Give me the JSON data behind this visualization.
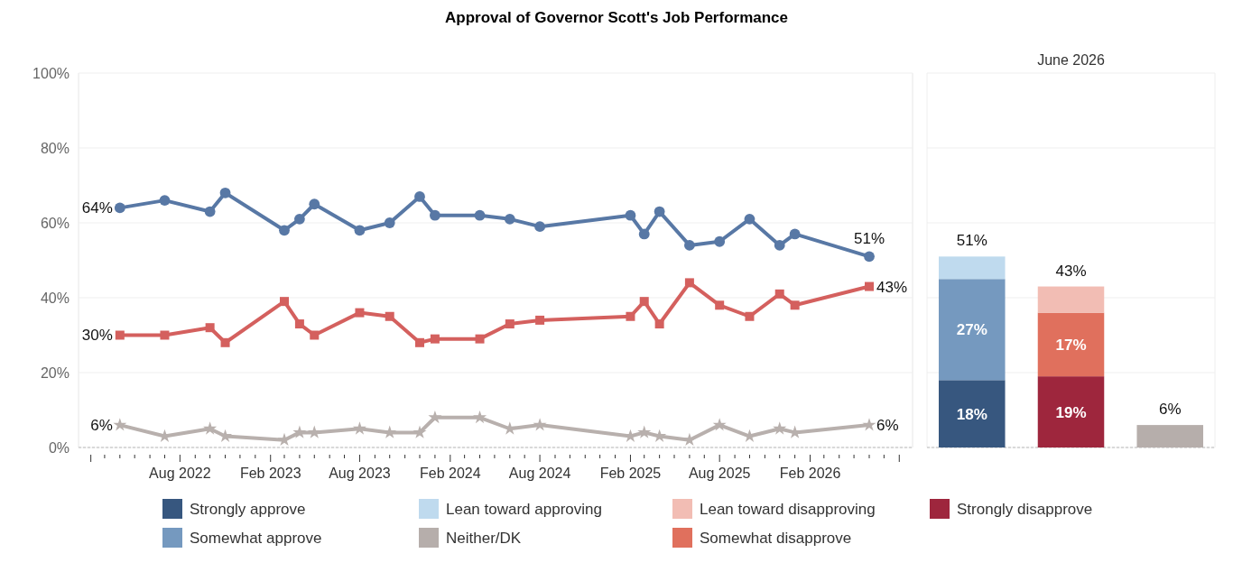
{
  "chart_data": [
    {
      "type": "line",
      "title": "Approval of Governor Scott's Job Performance",
      "x": [
        "2022-04",
        "2022-07",
        "2022-10",
        "2022-11",
        "2023-03",
        "2023-04",
        "2023-05",
        "2023-08",
        "2023-10",
        "2023-12",
        "2024-01",
        "2024-04",
        "2024-06",
        "2024-08",
        "2025-02",
        "2025-03",
        "2025-04",
        "2025-06",
        "2025-08",
        "2025-10",
        "2025-12",
        "2026-01",
        "2026-06"
      ],
      "series": [
        {
          "color": "#5878a5",
          "marker": "circle",
          "values": [
            64,
            66,
            63,
            68,
            58,
            61,
            65,
            58,
            60,
            67,
            62,
            62,
            61,
            59,
            62,
            57,
            63,
            54,
            55,
            61,
            54,
            57,
            51
          ],
          "value_labels": [
            "64%",
            null,
            null,
            null,
            null,
            null,
            null,
            null,
            null,
            null,
            null,
            null,
            null,
            null,
            null,
            null,
            null,
            null,
            null,
            null,
            null,
            null,
            "51%"
          ]
        },
        {
          "color": "#d4605e",
          "marker": "square",
          "values": [
            30,
            30,
            32,
            28,
            39,
            33,
            30,
            36,
            35,
            28,
            29,
            29,
            33,
            34,
            35,
            39,
            33,
            44,
            38,
            35,
            41,
            38,
            43
          ],
          "value_labels": [
            "30%",
            null,
            null,
            null,
            null,
            null,
            null,
            null,
            null,
            null,
            null,
            null,
            null,
            null,
            null,
            null,
            null,
            null,
            null,
            null,
            null,
            null,
            "43%"
          ]
        },
        {
          "color": "#b8b0ad",
          "marker": "star",
          "values": [
            6,
            3,
            5,
            3,
            2,
            4,
            4,
            5,
            4,
            4,
            8,
            8,
            5,
            6,
            3,
            4,
            3,
            2,
            6,
            3,
            5,
            4,
            6
          ],
          "value_labels": [
            "6%",
            null,
            null,
            null,
            null,
            null,
            null,
            null,
            null,
            null,
            null,
            null,
            null,
            null,
            null,
            null,
            null,
            null,
            null,
            null,
            null,
            null,
            "6%"
          ]
        }
      ],
      "xlim": [
        "2022-01-07",
        "2026-08-28"
      ],
      "xticks": [
        {
          "value": "2022-02",
          "label": null
        },
        {
          "value": "2022-03",
          "label": null
        },
        {
          "value": "2022-04",
          "label": null
        },
        {
          "value": "2022-05",
          "label": null
        },
        {
          "value": "2022-06",
          "label": null
        },
        {
          "value": "2022-07",
          "label": null
        },
        {
          "value": "2022-08",
          "label": "Aug 2022"
        },
        {
          "value": "2022-09",
          "label": null
        },
        {
          "value": "2022-10",
          "label": null
        },
        {
          "value": "2022-11",
          "label": null
        },
        {
          "value": "2022-12",
          "label": null
        },
        {
          "value": "2023-01",
          "label": null
        },
        {
          "value": "2023-02",
          "label": "Feb 2023"
        },
        {
          "value": "2023-03",
          "label": null
        },
        {
          "value": "2023-04",
          "label": null
        },
        {
          "value": "2023-05",
          "label": null
        },
        {
          "value": "2023-06",
          "label": null
        },
        {
          "value": "2023-07",
          "label": null
        },
        {
          "value": "2023-08",
          "label": "Aug 2023"
        },
        {
          "value": "2023-09",
          "label": null
        },
        {
          "value": "2023-10",
          "label": null
        },
        {
          "value": "2023-11",
          "label": null
        },
        {
          "value": "2023-12",
          "label": null
        },
        {
          "value": "2024-01",
          "label": null
        },
        {
          "value": "2024-02",
          "label": "Feb 2024"
        },
        {
          "value": "2024-03",
          "label": null
        },
        {
          "value": "2024-04",
          "label": null
        },
        {
          "value": "2024-05",
          "label": null
        },
        {
          "value": "2024-06",
          "label": null
        },
        {
          "value": "2024-07",
          "label": null
        },
        {
          "value": "2024-08",
          "label": "Aug 2024"
        },
        {
          "value": "2024-09",
          "label": null
        },
        {
          "value": "2024-10",
          "label": null
        },
        {
          "value": "2024-11",
          "label": null
        },
        {
          "value": "2024-12",
          "label": null
        },
        {
          "value": "2025-01",
          "label": null
        },
        {
          "value": "2025-02",
          "label": "Feb 2025"
        },
        {
          "value": "2025-03",
          "label": null
        },
        {
          "value": "2025-04",
          "label": null
        },
        {
          "value": "2025-05",
          "label": null
        },
        {
          "value": "2025-06",
          "label": null
        },
        {
          "value": "2025-07",
          "label": null
        },
        {
          "value": "2025-08",
          "label": "Aug 2025"
        },
        {
          "value": "2025-09",
          "label": null
        },
        {
          "value": "2025-10",
          "label": null
        },
        {
          "value": "2025-11",
          "label": null
        },
        {
          "value": "2025-12",
          "label": null
        },
        {
          "value": "2026-01",
          "label": null
        },
        {
          "value": "2026-02",
          "label": "Feb 2026"
        },
        {
          "value": "2026-03",
          "label": null
        },
        {
          "value": "2026-04",
          "label": null
        },
        {
          "value": "2026-05",
          "label": null
        },
        {
          "value": "2026-06",
          "label": null
        },
        {
          "value": "2026-07",
          "label": null
        },
        {
          "value": "2026-08",
          "label": null
        }
      ],
      "ylim": [
        0,
        100
      ],
      "yticks": [
        {
          "value": 0,
          "label": "0%"
        },
        {
          "value": 20,
          "label": "20%"
        },
        {
          "value": 40,
          "label": "40%"
        },
        {
          "value": 60,
          "label": "60%"
        },
        {
          "value": 80,
          "label": "80%"
        },
        {
          "value": 100,
          "label": "100%"
        }
      ],
      "grid": "y",
      "line_style": "solid"
    },
    {
      "type": "bar",
      "title": "June 2026",
      "categories": [
        null,
        null,
        null
      ],
      "stacked": true,
      "series": [
        {
          "name": "Strongly approve",
          "color": "#37577f",
          "values": [
            18,
            null,
            null
          ],
          "value_labels": [
            "18%",
            null,
            null
          ]
        },
        {
          "name": "Somewhat approve",
          "color": "#7599bf",
          "values": [
            27,
            null,
            null
          ],
          "value_labels": [
            "27%",
            null,
            null
          ]
        },
        {
          "name": "Lean toward approving",
          "color": "#bfdaee",
          "values": [
            6,
            null,
            null
          ]
        },
        {
          "name": "Strongly disapprove",
          "color": "#9e263d",
          "values": [
            null,
            19,
            null
          ],
          "value_labels": [
            null,
            "19%",
            null
          ]
        },
        {
          "name": "Somewhat disapprove",
          "color": "#e0705d",
          "values": [
            null,
            17,
            null
          ],
          "value_labels": [
            null,
            "17%",
            null
          ]
        },
        {
          "name": "Lean toward disapproving",
          "color": "#f2bdb4",
          "values": [
            null,
            7,
            null
          ]
        },
        {
          "name": "Neither/DK",
          "color": "#b6aeab",
          "values": [
            null,
            null,
            6
          ]
        }
      ],
      "totals": [
        "51%",
        "43%",
        "6%"
      ],
      "ylim": [
        0,
        100
      ],
      "yticks": [
        {
          "value": 0,
          "label": null
        },
        {
          "value": 20,
          "label": null
        },
        {
          "value": 40,
          "label": null
        },
        {
          "value": 60,
          "label": null
        },
        {
          "value": 80,
          "label": null
        },
        {
          "value": 100,
          "label": null
        }
      ],
      "grid": "y",
      "legend": "bottom"
    }
  ]
}
